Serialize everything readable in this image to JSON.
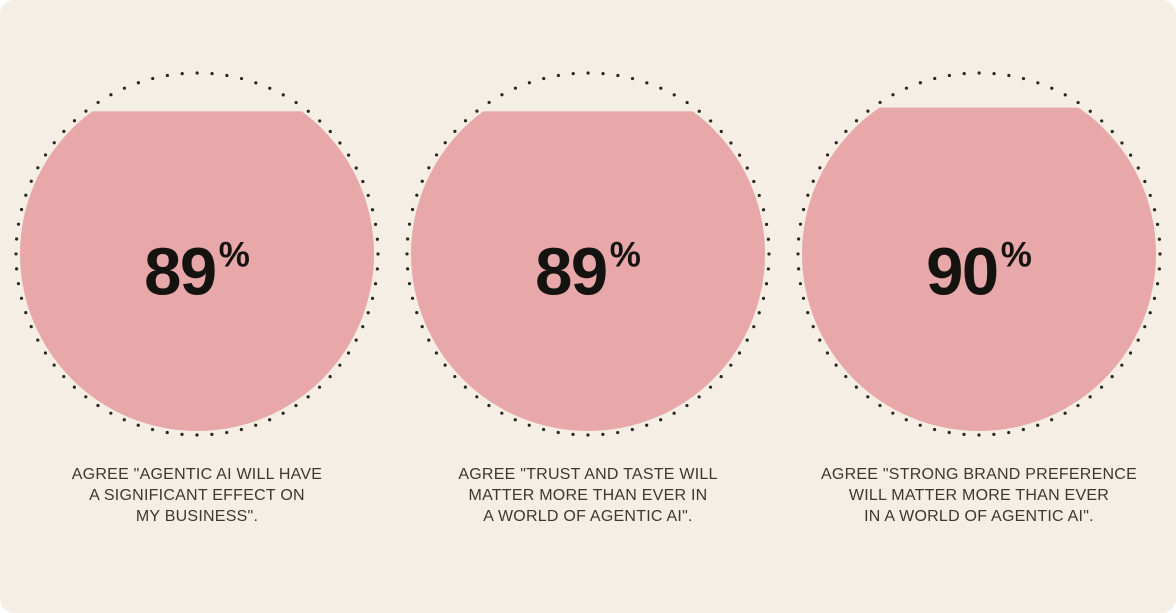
{
  "page": {
    "background_color": "#f4eee4",
    "card_corner_color": "#ffffff"
  },
  "chart_data": {
    "type": "pie",
    "variant": "dotted-circle-fill-gauge",
    "description": "Three dotted circles filled with pink from the bottom up to the stated percentage, large bold value in the center, uppercase caption below each circle",
    "unit": "%",
    "grid": false,
    "legend_position": "none",
    "colors": {
      "fill": "#e8a8a9",
      "dots": "#292622",
      "value_text": "#15130f",
      "caption_text": "#3b3831",
      "background": "#f4eee4"
    },
    "items": [
      {
        "value": 89,
        "value_display": "89",
        "suffix": "%",
        "caption": "AGREE \"AGENTIC AI WILL HAVE A SIGNIFICANT EFFECT ON MY BUSINESS\".",
        "caption_lines": [
          "AGREE \"AGENTIC AI WILL HAVE",
          "A SIGNIFICANT EFFECT ON",
          "MY BUSINESS\"."
        ]
      },
      {
        "value": 89,
        "value_display": "89",
        "suffix": "%",
        "caption": "AGREE \"TRUST AND TASTE WILL MATTER MORE THAN EVER IN A WORLD OF AGENTIC AI\".",
        "caption_lines": [
          "AGREE \"TRUST AND TASTE WILL",
          "MATTER MORE THAN EVER IN",
          "A WORLD OF AGENTIC AI\"."
        ]
      },
      {
        "value": 90,
        "value_display": "90",
        "suffix": "%",
        "caption": "AGREE \"STRONG BRAND PREFERENCE WILL MATTER MORE THAN EVER IN A WORLD OF AGENTIC AI\".",
        "caption_lines": [
          "AGREE \"STRONG BRAND PREFERENCE",
          "WILL MATTER MORE THAN EVER",
          "IN A WORLD OF AGENTIC AI\"."
        ]
      }
    ]
  }
}
